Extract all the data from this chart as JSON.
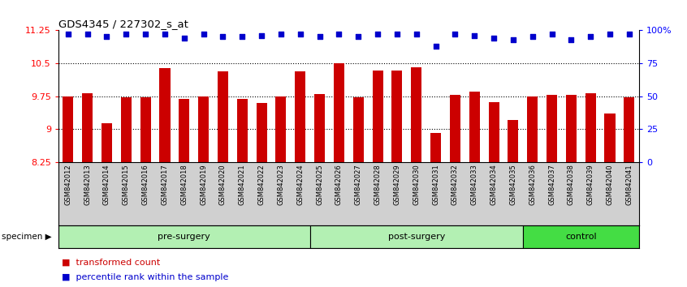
{
  "title": "GDS4345 / 227302_s_at",
  "categories": [
    "GSM842012",
    "GSM842013",
    "GSM842014",
    "GSM842015",
    "GSM842016",
    "GSM842017",
    "GSM842018",
    "GSM842019",
    "GSM842020",
    "GSM842021",
    "GSM842022",
    "GSM842023",
    "GSM842024",
    "GSM842025",
    "GSM842026",
    "GSM842027",
    "GSM842028",
    "GSM842029",
    "GSM842030",
    "GSM842031",
    "GSM842032",
    "GSM842033",
    "GSM842034",
    "GSM842035",
    "GSM842036",
    "GSM842037",
    "GSM842038",
    "GSM842039",
    "GSM842040",
    "GSM842041"
  ],
  "bar_values": [
    9.75,
    9.82,
    9.13,
    9.72,
    9.72,
    10.38,
    9.68,
    9.75,
    10.32,
    9.68,
    9.6,
    9.75,
    10.32,
    9.8,
    10.5,
    9.72,
    10.33,
    10.33,
    10.4,
    8.92,
    9.78,
    9.85,
    9.62,
    9.2,
    9.75,
    9.78,
    9.78,
    9.82,
    9.36,
    9.73
  ],
  "percentile_pct": [
    97,
    97,
    95,
    97,
    97,
    97,
    94,
    97,
    95,
    95,
    96,
    97,
    97,
    95,
    97,
    95,
    97,
    97,
    97,
    88,
    97,
    96,
    94,
    93,
    95,
    97,
    93,
    95,
    97,
    97
  ],
  "bar_color": "#cc0000",
  "percentile_color": "#0000cc",
  "ylim_left": [
    8.25,
    11.25
  ],
  "ylim_right": [
    0,
    100
  ],
  "yticks_left": [
    8.25,
    9.0,
    9.75,
    10.5,
    11.25
  ],
  "ytick_labels_left": [
    "8.25",
    "9",
    "9.75",
    "10.5",
    "11.25"
  ],
  "ytick_labels_right": [
    "0",
    "25",
    "50",
    "75",
    "100%"
  ],
  "hlines": [
    9.0,
    9.75,
    10.5
  ],
  "group_data": [
    {
      "label": "pre-surgery",
      "start": 0,
      "end": 13,
      "color": "#b3f0b3"
    },
    {
      "label": "post-surgery",
      "start": 13,
      "end": 24,
      "color": "#b3f0b3"
    },
    {
      "label": "control",
      "start": 24,
      "end": 30,
      "color": "#44dd44"
    }
  ],
  "xlabel_bg": "#d0d0d0",
  "legend_items": [
    "transformed count",
    "percentile rank within the sample"
  ],
  "legend_colors": [
    "#cc0000",
    "#0000cc"
  ],
  "bar_width": 0.55,
  "specimen_label": "specimen ▶"
}
